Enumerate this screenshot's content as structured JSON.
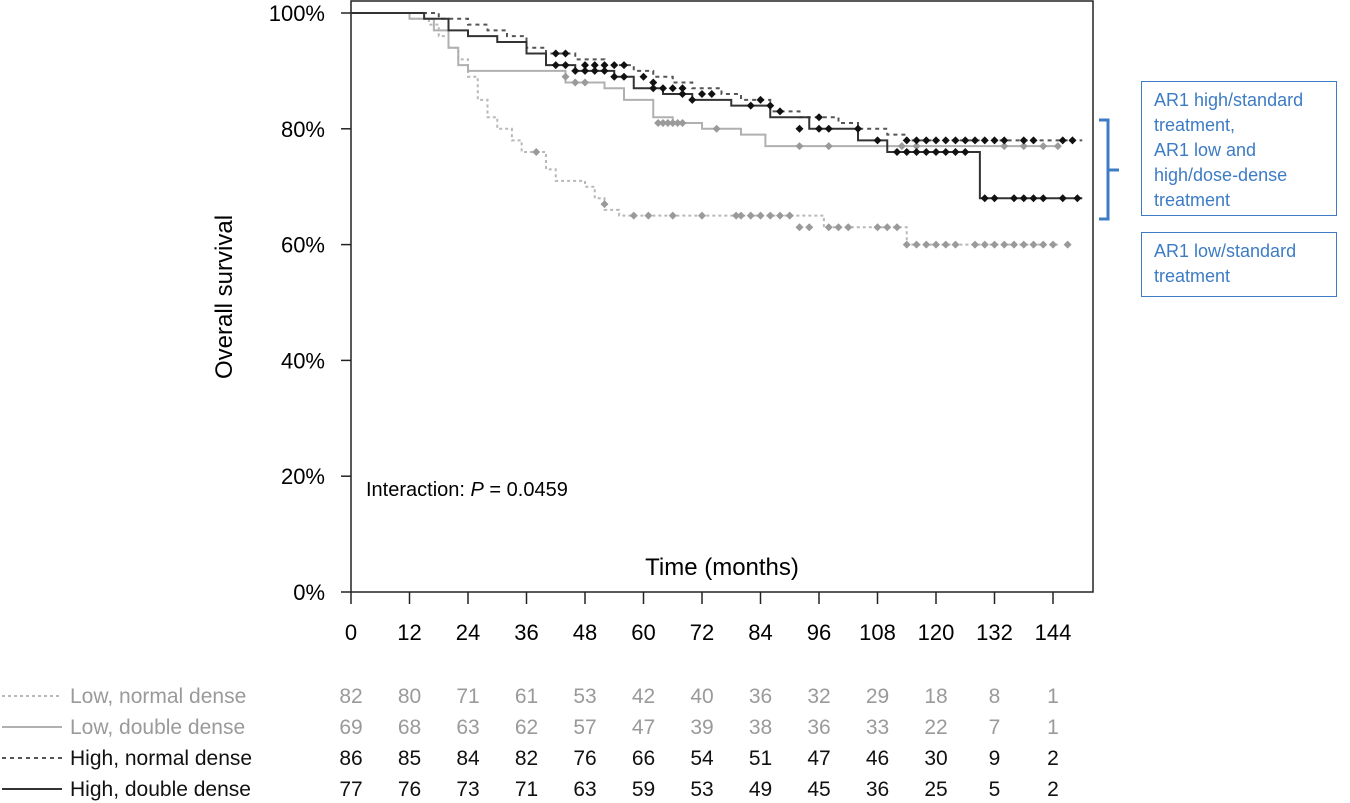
{
  "chart_data": {
    "type": "line",
    "subtype": "kaplan-meier",
    "ylabel": "Overall survival",
    "xlabel": "Time (months)",
    "xlim": [
      0,
      150
    ],
    "ylim": [
      0,
      100
    ],
    "x_ticks": [
      "0",
      "12",
      "24",
      "36",
      "48",
      "60",
      "72",
      "84",
      "96",
      "108",
      "120",
      "132",
      "144"
    ],
    "y_ticks": [
      "0%",
      "20%",
      "40%",
      "60%",
      "80%",
      "100%"
    ],
    "annotation": {
      "prefix": "Interaction: ",
      "p_symbol": "P",
      "suffix": " = 0.0459"
    },
    "series": [
      {
        "name": "Low, normal dense",
        "color": "#b8b8b8",
        "dash": "3,3",
        "at_risk_color": "#9a9a9a",
        "steps": [
          [
            0,
            100
          ],
          [
            12,
            99
          ],
          [
            16,
            98
          ],
          [
            18,
            96
          ],
          [
            20,
            94
          ],
          [
            22,
            92
          ],
          [
            24,
            89
          ],
          [
            26,
            85
          ],
          [
            28,
            82
          ],
          [
            30,
            80
          ],
          [
            33,
            78
          ],
          [
            35,
            76
          ],
          [
            40,
            73
          ],
          [
            42,
            71
          ],
          [
            48,
            70
          ],
          [
            50,
            68
          ],
          [
            52,
            66
          ],
          [
            55,
            65
          ],
          [
            97,
            63
          ],
          [
            114,
            60
          ],
          [
            145,
            60
          ]
        ],
        "censor": [
          [
            38,
            76
          ],
          [
            52,
            67
          ],
          [
            58,
            65
          ],
          [
            61,
            65
          ],
          [
            66,
            65
          ],
          [
            72,
            65
          ],
          [
            79,
            65
          ],
          [
            80,
            65
          ],
          [
            82,
            65
          ],
          [
            84,
            65
          ],
          [
            86,
            65
          ],
          [
            88,
            65
          ],
          [
            90,
            65
          ],
          [
            92,
            63
          ],
          [
            94,
            63
          ],
          [
            98,
            63
          ],
          [
            100,
            63
          ],
          [
            102,
            63
          ],
          [
            108,
            63
          ],
          [
            110,
            63
          ],
          [
            112,
            63
          ],
          [
            114,
            60
          ],
          [
            116,
            60
          ],
          [
            118,
            60
          ],
          [
            120,
            60
          ],
          [
            122,
            60
          ],
          [
            124,
            60
          ],
          [
            128,
            60
          ],
          [
            130,
            60
          ],
          [
            132,
            60
          ],
          [
            134,
            60
          ],
          [
            136,
            60
          ],
          [
            138,
            60
          ],
          [
            140,
            60
          ],
          [
            142,
            60
          ],
          [
            144,
            60
          ],
          [
            147,
            60
          ]
        ],
        "at_risk": [
          82,
          80,
          71,
          61,
          53,
          42,
          40,
          36,
          32,
          29,
          18,
          8,
          1
        ]
      },
      {
        "name": "Low, double dense",
        "color": "#b0b0b0",
        "dash": "",
        "at_risk_color": "#9a9a9a",
        "steps": [
          [
            0,
            100
          ],
          [
            12,
            99
          ],
          [
            17,
            97
          ],
          [
            20,
            94
          ],
          [
            22,
            91
          ],
          [
            24,
            90
          ],
          [
            28,
            90
          ],
          [
            32,
            90
          ],
          [
            40,
            90
          ],
          [
            44,
            88
          ],
          [
            52,
            87
          ],
          [
            56,
            85
          ],
          [
            62,
            82
          ],
          [
            66,
            81
          ],
          [
            72,
            80
          ],
          [
            80,
            79
          ],
          [
            85,
            77
          ],
          [
            94,
            77
          ],
          [
            102,
            77
          ],
          [
            112,
            77
          ],
          [
            120,
            77
          ],
          [
            145,
            77
          ]
        ],
        "censor": [
          [
            44,
            89
          ],
          [
            46,
            88
          ],
          [
            48,
            88
          ],
          [
            63,
            81
          ],
          [
            64,
            81
          ],
          [
            65,
            81
          ],
          [
            66,
            81
          ],
          [
            67,
            81
          ],
          [
            68,
            81
          ],
          [
            75,
            80
          ],
          [
            92,
            77
          ],
          [
            98,
            77
          ],
          [
            113,
            77
          ],
          [
            116,
            77
          ],
          [
            134,
            77
          ],
          [
            138,
            77
          ],
          [
            142,
            77
          ],
          [
            145,
            77
          ]
        ],
        "at_risk": [
          69,
          68,
          63,
          62,
          57,
          47,
          39,
          38,
          36,
          33,
          22,
          7,
          1
        ]
      },
      {
        "name": "High, normal dense",
        "color": "#555555",
        "dash": "4,4",
        "at_risk_color": "#111111",
        "steps": [
          [
            0,
            100
          ],
          [
            12,
            100
          ],
          [
            18,
            99
          ],
          [
            24,
            98
          ],
          [
            28,
            97
          ],
          [
            32,
            96
          ],
          [
            36,
            94
          ],
          [
            40,
            93
          ],
          [
            46,
            92
          ],
          [
            52,
            91
          ],
          [
            58,
            90
          ],
          [
            62,
            89
          ],
          [
            66,
            88
          ],
          [
            70,
            87
          ],
          [
            76,
            86
          ],
          [
            80,
            85
          ],
          [
            86,
            83
          ],
          [
            92,
            82
          ],
          [
            100,
            81
          ],
          [
            104,
            80
          ],
          [
            110,
            79
          ],
          [
            114,
            78
          ],
          [
            150,
            78
          ]
        ],
        "censor": [
          [
            42,
            93
          ],
          [
            44,
            93
          ],
          [
            48,
            91
          ],
          [
            50,
            91
          ],
          [
            52,
            91
          ],
          [
            54,
            91
          ],
          [
            56,
            91
          ],
          [
            60,
            89
          ],
          [
            62,
            88
          ],
          [
            64,
            87
          ],
          [
            66,
            87
          ],
          [
            68,
            87
          ],
          [
            72,
            86
          ],
          [
            74,
            86
          ],
          [
            84,
            85
          ],
          [
            86,
            84
          ],
          [
            88,
            83
          ],
          [
            96,
            82
          ],
          [
            104,
            80
          ],
          [
            114,
            78
          ],
          [
            116,
            78
          ],
          [
            118,
            78
          ],
          [
            120,
            78
          ],
          [
            122,
            78
          ],
          [
            124,
            78
          ],
          [
            126,
            78
          ],
          [
            128,
            78
          ],
          [
            130,
            78
          ],
          [
            132,
            78
          ],
          [
            134,
            78
          ],
          [
            138,
            78
          ],
          [
            140,
            78
          ],
          [
            146,
            78
          ],
          [
            148,
            78
          ]
        ],
        "at_risk": [
          86,
          85,
          84,
          82,
          76,
          66,
          54,
          51,
          47,
          46,
          30,
          9,
          2
        ]
      },
      {
        "name": "High, double dense",
        "color": "#333333",
        "dash": "",
        "at_risk_color": "#111111",
        "steps": [
          [
            0,
            100
          ],
          [
            15,
            99
          ],
          [
            20,
            97
          ],
          [
            24,
            96
          ],
          [
            30,
            95
          ],
          [
            36,
            93
          ],
          [
            40,
            91
          ],
          [
            46,
            90
          ],
          [
            54,
            89
          ],
          [
            58,
            87
          ],
          [
            64,
            86
          ],
          [
            70,
            85
          ],
          [
            78,
            84
          ],
          [
            86,
            82
          ],
          [
            94,
            80
          ],
          [
            104,
            78
          ],
          [
            110,
            76
          ],
          [
            128,
            76
          ],
          [
            129,
            68
          ],
          [
            150,
            68
          ]
        ],
        "censor": [
          [
            42,
            91
          ],
          [
            44,
            91
          ],
          [
            46,
            90
          ],
          [
            48,
            90
          ],
          [
            50,
            90
          ],
          [
            52,
            90
          ],
          [
            54,
            89
          ],
          [
            56,
            89
          ],
          [
            62,
            87
          ],
          [
            68,
            86
          ],
          [
            70,
            85
          ],
          [
            82,
            84
          ],
          [
            92,
            80
          ],
          [
            96,
            80
          ],
          [
            98,
            80
          ],
          [
            108,
            78
          ],
          [
            112,
            76
          ],
          [
            114,
            76
          ],
          [
            116,
            76
          ],
          [
            118,
            76
          ],
          [
            120,
            76
          ],
          [
            122,
            76
          ],
          [
            124,
            76
          ],
          [
            126,
            76
          ],
          [
            130,
            68
          ],
          [
            132,
            68
          ],
          [
            136,
            68
          ],
          [
            138,
            68
          ],
          [
            140,
            68
          ],
          [
            142,
            68
          ],
          [
            146,
            68
          ],
          [
            149,
            68
          ]
        ],
        "at_risk": [
          77,
          76,
          73,
          71,
          63,
          59,
          53,
          49,
          45,
          36,
          25,
          5,
          2
        ]
      }
    ]
  },
  "legend_boxes": [
    {
      "lines": [
        "AR1 high/standard",
        "treatment,",
        "AR1 low and",
        "high/dose-dense",
        "treatment"
      ]
    },
    {
      "lines": [
        "AR1 low/standard",
        "treatment"
      ]
    }
  ],
  "colors": {
    "accent": "#3d7cc4"
  }
}
